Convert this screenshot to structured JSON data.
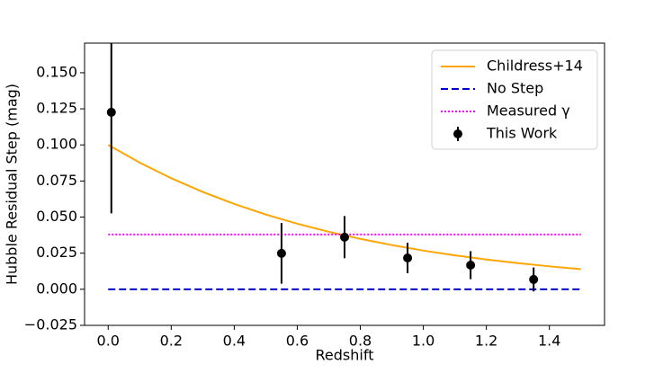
{
  "chart_data": {
    "type": "line",
    "xlabel": "Redshift",
    "ylabel": "Hubble Residual Step (mag)",
    "xlim": [
      -0.075,
      1.575
    ],
    "ylim": [
      -0.025,
      0.1705
    ],
    "xticks": [
      {
        "value": 0.0,
        "label": "0.0"
      },
      0.2,
      0.4,
      0.6,
      0.8,
      {
        "value": 1.0,
        "label": "1.0"
      },
      1.2,
      1.4
    ],
    "yticks": [
      {
        "value": -0.025,
        "label": "−0.025"
      },
      {
        "value": 0.0,
        "label": "0.000"
      },
      0.025,
      {
        "value": 0.05,
        "label": "0.050"
      },
      0.075,
      {
        "value": 0.1,
        "label": "0.100"
      },
      0.125,
      {
        "value": 0.15,
        "label": "0.150"
      }
    ],
    "legend": "upper right",
    "series": [
      {
        "name": "Childress+14",
        "color": "#ffa500",
        "kind": "solid",
        "x": [
          0.0,
          0.1,
          0.2,
          0.3,
          0.4,
          0.5,
          0.6,
          0.7,
          0.8,
          0.9,
          1.0,
          1.1,
          1.2,
          1.3,
          1.4,
          1.5
        ],
        "values": [
          0.1,
          0.0877,
          0.0769,
          0.0674,
          0.0591,
          0.0518,
          0.0454,
          0.0398,
          0.0349,
          0.0306,
          0.0268,
          0.0235,
          0.0206,
          0.0181,
          0.0159,
          0.0139
        ]
      },
      {
        "name": "No Step",
        "color": "#0000cc",
        "kind": "dashed",
        "x": [
          0.0,
          1.5
        ],
        "values": [
          0.0,
          0.0
        ]
      },
      {
        "name": "Measured γ",
        "color": "#ff00ff",
        "kind": "dotted",
        "x": [
          0.0,
          1.5
        ],
        "values": [
          0.038,
          0.038
        ]
      },
      {
        "name": "This Work",
        "color": "#000000",
        "kind": "errorbar",
        "x": [
          0.01,
          0.55,
          0.75,
          0.95,
          1.15,
          1.35
        ],
        "values": [
          0.1226,
          0.0249,
          0.0361,
          0.0217,
          0.0167,
          0.0068
        ],
        "errors": [
          0.07,
          0.021,
          0.0146,
          0.0106,
          0.0097,
          0.0083
        ]
      }
    ]
  }
}
